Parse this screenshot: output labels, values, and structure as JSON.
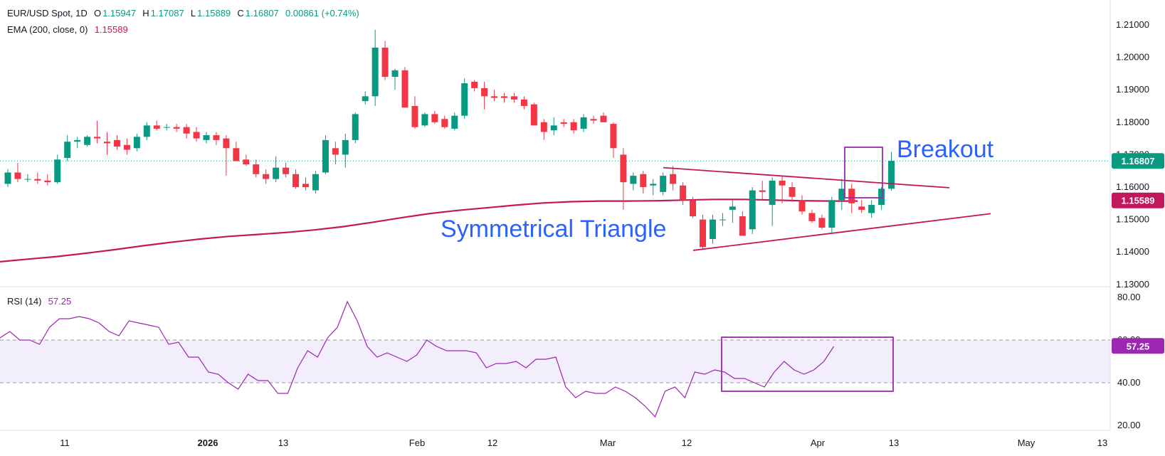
{
  "legend": {
    "symbol": "EUR/USD Spot, 1D",
    "open_label": "O",
    "open": "1.15947",
    "high_label": "H",
    "high": "1.17087",
    "low_label": "L",
    "low": "1.15889",
    "close_label": "C",
    "close": "1.16807",
    "change": "0.00861 (+0.74%)",
    "ema_label": "EMA (200, close, 0)",
    "ema_value": "1.15589",
    "rsi_label": "RSI (14)",
    "rsi_value": "57.25"
  },
  "colors": {
    "up": "#089981",
    "down": "#f23645",
    "ema": "#c2185b",
    "rsi": "#9c27b0",
    "rsi_band": "#f3eefb",
    "trendline": "#c2185b",
    "box": "#9c27b0",
    "annotation": "#2962ff",
    "last_price_tag": "#089981",
    "ema_tag": "#c2185b",
    "rsi_tag": "#9c27b0"
  },
  "chart_data": [
    {
      "type": "candlestick",
      "title": "EUR/USD Spot, 1D",
      "ylim": [
        1.128,
        1.214
      ],
      "y_ticks": [
        "1.21000",
        "1.20000",
        "1.19000",
        "1.18000",
        "1.17000",
        "1.16000",
        "1.15000",
        "1.14000",
        "1.13000"
      ],
      "x_tick_labels": [
        "11",
        "2026",
        "13",
        "Feb",
        "12",
        "Mar",
        "12",
        "Apr",
        "13",
        "May",
        "13"
      ],
      "last_price": "1.16807",
      "ema_tag": "1.15589",
      "annotations": [
        "Breakout",
        "Symmetrical Triangle"
      ],
      "candles": [
        [
          1.161,
          1.1655,
          1.16,
          1.1645
        ],
        [
          1.1645,
          1.1675,
          1.1615,
          1.1625
        ],
        [
          1.1625,
          1.164,
          1.1615,
          1.1625
        ],
        [
          1.1625,
          1.1645,
          1.161,
          1.162
        ],
        [
          1.162,
          1.164,
          1.1605,
          1.1615
        ],
        [
          1.1615,
          1.17,
          1.161,
          1.1685
        ],
        [
          1.169,
          1.176,
          1.168,
          1.174
        ],
        [
          1.174,
          1.1755,
          1.172,
          1.1745
        ],
        [
          1.173,
          1.176,
          1.1725,
          1.1755
        ],
        [
          1.1755,
          1.1805,
          1.1735,
          1.175
        ],
        [
          1.174,
          1.177,
          1.17,
          1.1735
        ],
        [
          1.1745,
          1.176,
          1.1715,
          1.1725
        ],
        [
          1.173,
          1.175,
          1.17,
          1.1715
        ],
        [
          1.172,
          1.1765,
          1.171,
          1.1755
        ],
        [
          1.1755,
          1.18,
          1.1745,
          1.179
        ],
        [
          1.179,
          1.1805,
          1.1775,
          1.178
        ],
        [
          1.1785,
          1.1795,
          1.1775,
          1.1785
        ],
        [
          1.1785,
          1.1795,
          1.177,
          1.178
        ],
        [
          1.1785,
          1.1795,
          1.175,
          1.1765
        ],
        [
          1.177,
          1.1785,
          1.174,
          1.175
        ],
        [
          1.1745,
          1.177,
          1.1735,
          1.176
        ],
        [
          1.176,
          1.177,
          1.173,
          1.1745
        ],
        [
          1.175,
          1.176,
          1.1635,
          1.172
        ],
        [
          1.172,
          1.174,
          1.168,
          1.168
        ],
        [
          1.1685,
          1.17,
          1.1665,
          1.167
        ],
        [
          1.167,
          1.1685,
          1.163,
          1.164
        ],
        [
          1.164,
          1.1655,
          1.161,
          1.1625
        ],
        [
          1.1625,
          1.1695,
          1.1615,
          1.166
        ],
        [
          1.166,
          1.1675,
          1.163,
          1.164
        ],
        [
          1.164,
          1.1655,
          1.1595,
          1.16
        ],
        [
          1.161,
          1.163,
          1.159,
          1.16
        ],
        [
          1.159,
          1.165,
          1.158,
          1.164
        ],
        [
          1.1645,
          1.176,
          1.164,
          1.1745
        ],
        [
          1.172,
          1.174,
          1.167,
          1.17
        ],
        [
          1.17,
          1.1765,
          1.166,
          1.1745
        ],
        [
          1.1745,
          1.183,
          1.1735,
          1.1825
        ],
        [
          1.1865,
          1.1895,
          1.1855,
          1.188
        ],
        [
          1.188,
          1.2085,
          1.185,
          1.203
        ],
        [
          1.203,
          1.205,
          1.193,
          1.194
        ],
        [
          1.194,
          1.1965,
          1.19,
          1.196
        ],
        [
          1.196,
          1.197,
          1.185,
          1.1845
        ],
        [
          1.185,
          1.188,
          1.178,
          1.1785
        ],
        [
          1.179,
          1.183,
          1.1785,
          1.1825
        ],
        [
          1.1825,
          1.1835,
          1.1795,
          1.18
        ],
        [
          1.181,
          1.182,
          1.178,
          1.1785
        ],
        [
          1.178,
          1.183,
          1.1775,
          1.182
        ],
        [
          1.182,
          1.1935,
          1.181,
          1.192
        ],
        [
          1.1925,
          1.193,
          1.1895,
          1.1905
        ],
        [
          1.1905,
          1.1925,
          1.184,
          1.188
        ],
        [
          1.188,
          1.19,
          1.1865,
          1.1875
        ],
        [
          1.188,
          1.189,
          1.186,
          1.1875
        ],
        [
          1.188,
          1.189,
          1.186,
          1.187
        ],
        [
          1.187,
          1.188,
          1.184,
          1.185
        ],
        [
          1.1855,
          1.186,
          1.179,
          1.179
        ],
        [
          1.18,
          1.181,
          1.1745,
          1.177
        ],
        [
          1.1775,
          1.1815,
          1.176,
          1.179
        ],
        [
          1.18,
          1.181,
          1.1785,
          1.1795
        ],
        [
          1.18,
          1.181,
          1.1765,
          1.1775
        ],
        [
          1.178,
          1.1825,
          1.177,
          1.1815
        ],
        [
          1.181,
          1.182,
          1.1795,
          1.1805
        ],
        [
          1.182,
          1.183,
          1.18,
          1.18
        ],
        [
          1.1795,
          1.18,
          1.169,
          1.172
        ],
        [
          1.17,
          1.172,
          1.153,
          1.1615
        ],
        [
          1.161,
          1.1645,
          1.159,
          1.1635
        ],
        [
          1.164,
          1.165,
          1.158,
          1.16
        ],
        [
          1.1605,
          1.1625,
          1.1575,
          1.161
        ],
        [
          1.1585,
          1.1645,
          1.1575,
          1.1635
        ],
        [
          1.164,
          1.1665,
          1.159,
          1.161
        ],
        [
          1.1605,
          1.1615,
          1.1545,
          1.156
        ],
        [
          1.156,
          1.157,
          1.1505,
          1.151
        ],
        [
          1.15,
          1.1515,
          1.141,
          1.1415
        ],
        [
          1.144,
          1.1515,
          1.1425,
          1.15
        ],
        [
          1.15,
          1.152,
          1.148,
          1.15
        ],
        [
          1.153,
          1.156,
          1.149,
          1.154
        ],
        [
          1.151,
          1.1525,
          1.145,
          1.145
        ],
        [
          1.147,
          1.16,
          1.1455,
          1.159
        ],
        [
          1.159,
          1.162,
          1.156,
          1.1585
        ],
        [
          1.1545,
          1.163,
          1.148,
          1.162
        ],
        [
          1.162,
          1.1635,
          1.155,
          1.1605
        ],
        [
          1.16,
          1.1615,
          1.1555,
          1.157
        ],
        [
          1.156,
          1.1575,
          1.1515,
          1.1525
        ],
        [
          1.152,
          1.153,
          1.149,
          1.1495
        ],
        [
          1.1505,
          1.1515,
          1.147,
          1.1475
        ],
        [
          1.1475,
          1.157,
          1.146,
          1.156
        ],
        [
          1.156,
          1.1625,
          1.153,
          1.1595
        ],
        [
          1.1595,
          1.161,
          1.152,
          1.155
        ],
        [
          1.154,
          1.156,
          1.152,
          1.153
        ],
        [
          1.152,
          1.156,
          1.1505,
          1.1545
        ],
        [
          1.1545,
          1.16,
          1.153,
          1.1595
        ],
        [
          1.1595,
          1.1709,
          1.1589,
          1.1681
        ]
      ],
      "ema_200": [
        1.137,
        1.1378,
        1.1386,
        1.1396,
        1.1407,
        1.1419,
        1.143,
        1.144,
        1.1448,
        1.1454,
        1.146,
        1.1468,
        1.1478,
        1.1491,
        1.1505,
        1.1518,
        1.1528,
        1.1536,
        1.1544,
        1.1551,
        1.1555,
        1.1557,
        1.1557,
        1.1558,
        1.156,
        1.1562,
        1.1562,
        1.156,
        1.1558,
        1.1557,
        1.1557
      ],
      "trendlines": [
        {
          "name": "Symmetrical Triangle upper",
          "from": [
            1.166
          ],
          "to": [
            1.1598
          ]
        },
        {
          "name": "Symmetrical Triangle lower",
          "from": [
            1.1405
          ],
          "to": [
            1.1518
          ]
        }
      ]
    },
    {
      "type": "line",
      "title": "RSI (14)",
      "ylim": [
        20,
        80
      ],
      "y_ticks": [
        "80.00",
        "60.00",
        "40.00",
        "20.00"
      ],
      "band": [
        40,
        60
      ],
      "last_value": "57.25",
      "values": [
        61,
        64,
        60,
        60,
        58,
        66,
        70,
        70,
        71,
        70,
        68,
        64,
        62,
        69,
        68,
        67,
        66,
        58,
        59,
        52,
        52,
        45,
        44,
        40,
        37,
        44,
        41,
        41,
        35,
        35,
        47,
        55,
        52,
        61,
        66,
        78,
        69,
        57,
        52,
        54,
        52,
        50,
        53,
        60,
        57,
        55,
        55,
        55,
        54,
        47,
        49,
        49,
        50,
        47,
        51,
        51,
        52,
        38,
        33,
        36,
        35,
        35,
        38,
        36,
        33,
        29,
        24,
        36,
        38,
        33,
        45,
        44,
        46,
        45,
        42,
        42,
        40,
        38,
        45,
        50,
        46,
        44,
        46,
        50,
        57
      ]
    }
  ]
}
